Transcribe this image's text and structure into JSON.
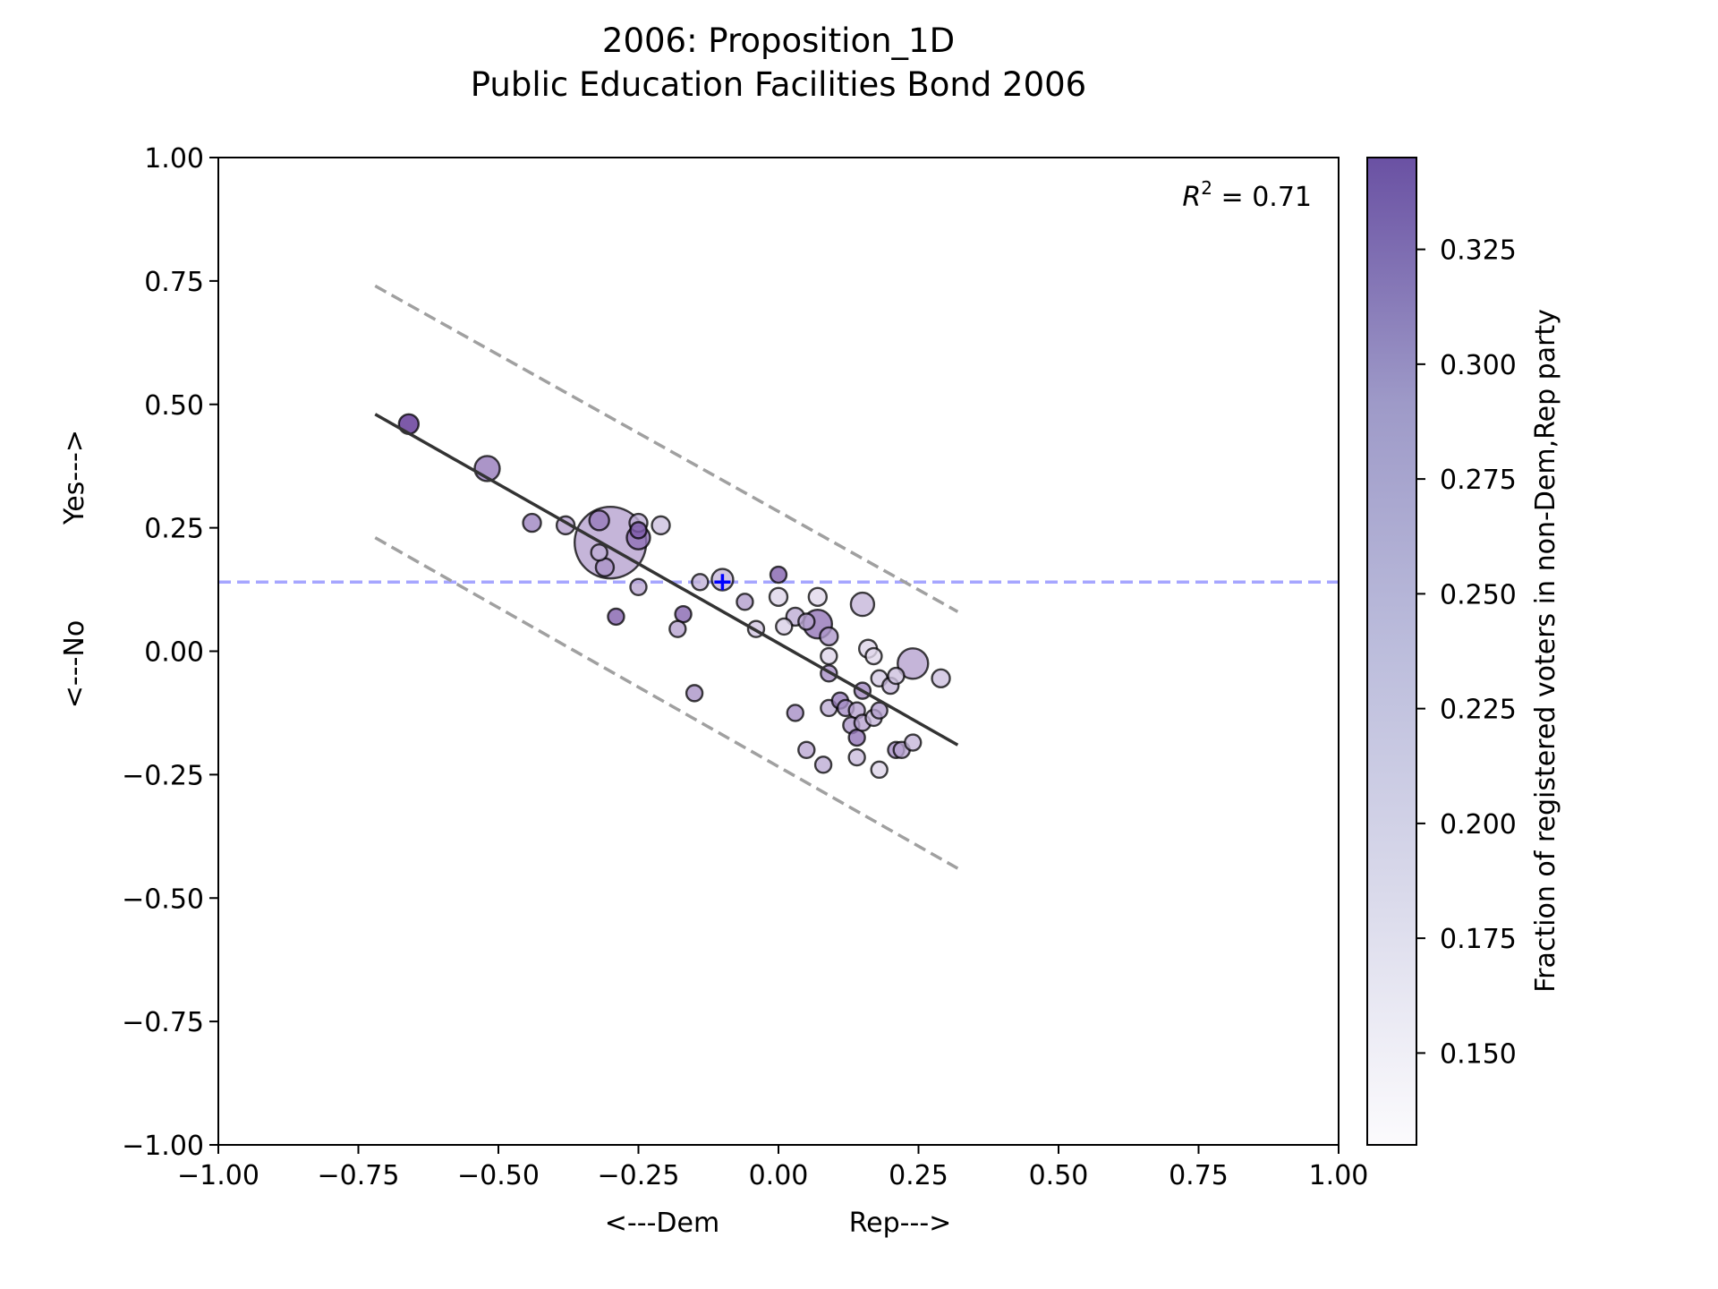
{
  "chart_data": {
    "type": "scatter",
    "title": "2006: Proposition_1D",
    "subtitle": "Public Education Facilities Bond 2006",
    "xlabel_left": "<---Dem",
    "xlabel_right": "Rep--->",
    "ylabel_bottom": "<---No",
    "ylabel_top": "Yes--->",
    "xlim": [
      -1.0,
      1.0
    ],
    "ylim": [
      -1.0,
      1.0
    ],
    "xticks": [
      "−1.00",
      "−0.75",
      "−0.50",
      "−0.25",
      "0.00",
      "0.25",
      "0.50",
      "0.75",
      "1.00"
    ],
    "yticks": [
      "−1.00",
      "−0.75",
      "−0.50",
      "−0.25",
      "0.00",
      "0.25",
      "0.50",
      "0.75",
      "1.00"
    ],
    "grid": false,
    "annotation": {
      "label": "R",
      "sup": "2",
      "value": " = 0.71"
    },
    "colorbar": {
      "label": "Fraction of registered voters in non-Dem,Rep party",
      "range": [
        0.13,
        0.345
      ],
      "ticks": [
        "0.150",
        "0.175",
        "0.200",
        "0.225",
        "0.250",
        "0.275",
        "0.300",
        "0.325"
      ],
      "color_low": "#fcfbfd",
      "color_high": "#54278f"
    },
    "fit_line": {
      "x": [
        -0.72,
        0.32
      ],
      "y": [
        0.48,
        -0.19
      ],
      "color": "#333333"
    },
    "upper_band": {
      "x": [
        -0.72,
        0.32
      ],
      "y": [
        0.74,
        0.08
      ],
      "color": "#a0a0a0"
    },
    "lower_band": {
      "x": [
        -0.72,
        0.32
      ],
      "y": [
        0.23,
        -0.44
      ],
      "color": "#a0a0a0"
    },
    "reference_line": {
      "y": 0.14,
      "color": "#0000ff"
    },
    "marker": {
      "x": -0.1,
      "y": 0.14,
      "color": "#0000ff"
    },
    "points": [
      {
        "x": -0.66,
        "y": 0.46,
        "s": 11,
        "c": 0.335
      },
      {
        "x": -0.52,
        "y": 0.37,
        "s": 14,
        "c": 0.26
      },
      {
        "x": -0.44,
        "y": 0.26,
        "s": 10,
        "c": 0.25
      },
      {
        "x": -0.38,
        "y": 0.255,
        "s": 10,
        "c": 0.22
      },
      {
        "x": -0.32,
        "y": 0.265,
        "s": 11,
        "c": 0.26
      },
      {
        "x": -0.3,
        "y": 0.22,
        "s": 40,
        "c": 0.22
      },
      {
        "x": -0.32,
        "y": 0.2,
        "s": 9,
        "c": 0.21
      },
      {
        "x": -0.31,
        "y": 0.17,
        "s": 10,
        "c": 0.235
      },
      {
        "x": -0.25,
        "y": 0.26,
        "s": 10,
        "c": 0.21
      },
      {
        "x": -0.25,
        "y": 0.23,
        "s": 13,
        "c": 0.27
      },
      {
        "x": -0.25,
        "y": 0.245,
        "s": 9,
        "c": 0.29
      },
      {
        "x": -0.21,
        "y": 0.255,
        "s": 10,
        "c": 0.19
      },
      {
        "x": -0.29,
        "y": 0.07,
        "s": 9,
        "c": 0.285
      },
      {
        "x": -0.25,
        "y": 0.13,
        "s": 9,
        "c": 0.215
      },
      {
        "x": -0.17,
        "y": 0.075,
        "s": 9,
        "c": 0.28
      },
      {
        "x": -0.18,
        "y": 0.045,
        "s": 9,
        "c": 0.22
      },
      {
        "x": -0.14,
        "y": 0.14,
        "s": 9,
        "c": 0.205
      },
      {
        "x": -0.1,
        "y": 0.145,
        "s": 12,
        "c": 0.2
      },
      {
        "x": -0.06,
        "y": 0.1,
        "s": 9,
        "c": 0.225
      },
      {
        "x": -0.04,
        "y": 0.045,
        "s": 9,
        "c": 0.185
      },
      {
        "x": 0.0,
        "y": 0.155,
        "s": 9,
        "c": 0.285
      },
      {
        "x": 0.0,
        "y": 0.11,
        "s": 10,
        "c": 0.17
      },
      {
        "x": 0.01,
        "y": 0.05,
        "s": 9,
        "c": 0.175
      },
      {
        "x": 0.03,
        "y": 0.07,
        "s": 10,
        "c": 0.21
      },
      {
        "x": 0.05,
        "y": 0.06,
        "s": 9,
        "c": 0.22
      },
      {
        "x": 0.07,
        "y": 0.055,
        "s": 16,
        "c": 0.265
      },
      {
        "x": 0.07,
        "y": 0.11,
        "s": 10,
        "c": 0.165
      },
      {
        "x": 0.09,
        "y": 0.03,
        "s": 10,
        "c": 0.23
      },
      {
        "x": 0.09,
        "y": -0.01,
        "s": 9,
        "c": 0.17
      },
      {
        "x": 0.09,
        "y": -0.045,
        "s": 9,
        "c": 0.24
      },
      {
        "x": 0.15,
        "y": 0.095,
        "s": 13,
        "c": 0.2
      },
      {
        "x": 0.16,
        "y": 0.005,
        "s": 10,
        "c": 0.17
      },
      {
        "x": 0.17,
        "y": -0.01,
        "s": 9,
        "c": 0.165
      },
      {
        "x": 0.18,
        "y": -0.055,
        "s": 9,
        "c": 0.18
      },
      {
        "x": 0.2,
        "y": -0.07,
        "s": 9,
        "c": 0.2
      },
      {
        "x": 0.21,
        "y": -0.05,
        "s": 9,
        "c": 0.19
      },
      {
        "x": 0.24,
        "y": -0.025,
        "s": 17,
        "c": 0.22
      },
      {
        "x": 0.29,
        "y": -0.055,
        "s": 10,
        "c": 0.19
      },
      {
        "x": 0.03,
        "y": -0.125,
        "s": 9,
        "c": 0.24
      },
      {
        "x": 0.09,
        "y": -0.115,
        "s": 9,
        "c": 0.21
      },
      {
        "x": 0.11,
        "y": -0.1,
        "s": 9,
        "c": 0.255
      },
      {
        "x": 0.12,
        "y": -0.115,
        "s": 9,
        "c": 0.24
      },
      {
        "x": 0.14,
        "y": -0.12,
        "s": 9,
        "c": 0.22
      },
      {
        "x": 0.15,
        "y": -0.08,
        "s": 9,
        "c": 0.245
      },
      {
        "x": 0.13,
        "y": -0.15,
        "s": 9,
        "c": 0.23
      },
      {
        "x": 0.14,
        "y": -0.175,
        "s": 9,
        "c": 0.265
      },
      {
        "x": 0.15,
        "y": -0.145,
        "s": 9,
        "c": 0.22
      },
      {
        "x": 0.17,
        "y": -0.135,
        "s": 9,
        "c": 0.2
      },
      {
        "x": 0.18,
        "y": -0.12,
        "s": 9,
        "c": 0.225
      },
      {
        "x": 0.05,
        "y": -0.2,
        "s": 9,
        "c": 0.215
      },
      {
        "x": 0.08,
        "y": -0.23,
        "s": 9,
        "c": 0.21
      },
      {
        "x": 0.14,
        "y": -0.215,
        "s": 9,
        "c": 0.195
      },
      {
        "x": 0.18,
        "y": -0.24,
        "s": 9,
        "c": 0.17
      },
      {
        "x": 0.21,
        "y": -0.2,
        "s": 9,
        "c": 0.24
      },
      {
        "x": 0.22,
        "y": -0.2,
        "s": 9,
        "c": 0.22
      },
      {
        "x": 0.24,
        "y": -0.185,
        "s": 9,
        "c": 0.2
      },
      {
        "x": -0.15,
        "y": -0.085,
        "s": 9,
        "c": 0.235
      }
    ]
  }
}
